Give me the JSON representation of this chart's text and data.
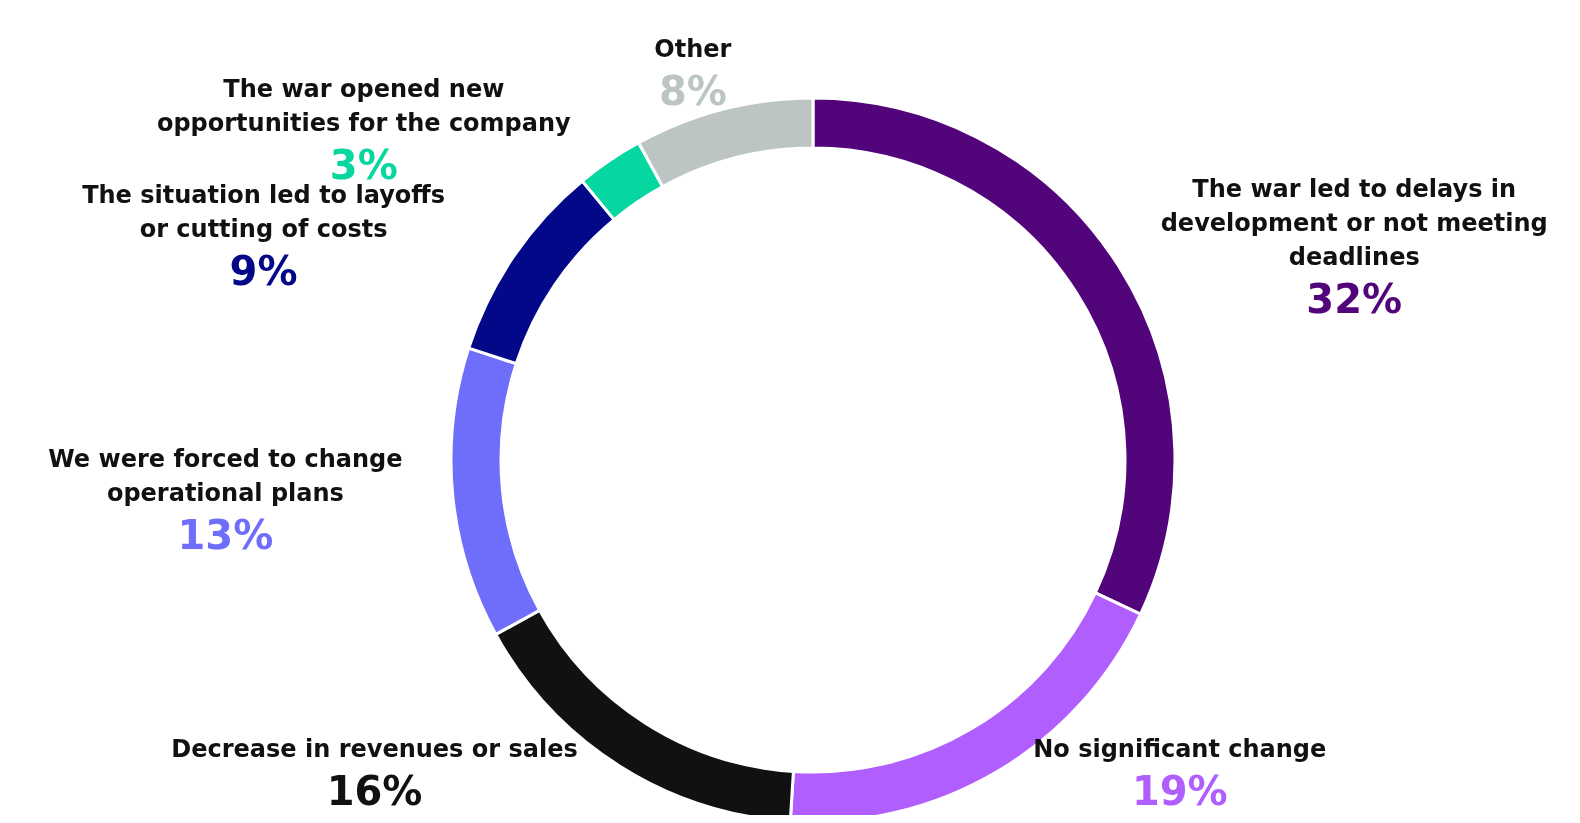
{
  "chart_data": {
    "type": "donut",
    "categories": [
      "The war led to delays in development or not meeting deadlines",
      "No significant change",
      "Decrease in revenues or sales",
      "We were forced to change operational plans",
      "The situation led to layoffs or cutting of costs",
      "The war opened new opportunities for the company",
      "Other"
    ],
    "values": [
      32,
      19,
      16,
      13,
      9,
      3,
      8
    ],
    "colors": [
      "#52057b",
      "#b15eff",
      "#111111",
      "#6e6efa",
      "#020887",
      "#06d6a0",
      "#bcc4c4"
    ],
    "value_labels": [
      "32%",
      "19%",
      "16%",
      "13%",
      "9%",
      "3%",
      "8%"
    ]
  }
}
